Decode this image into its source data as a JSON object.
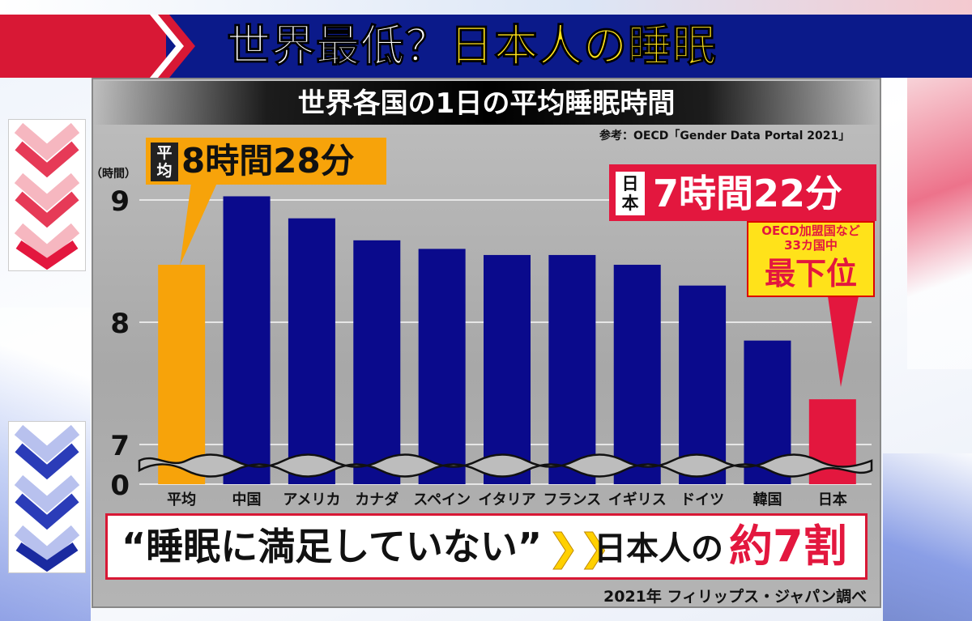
{
  "header": {
    "title_part1": "世界最低？",
    "title_part2": "日本人の睡眠"
  },
  "subtitle": "世界各国の1日の平均睡眠時間",
  "source": "参考：OECD「Gender Data Portal 2021」",
  "average_callout": {
    "tag": "平均",
    "value": "8時間28分"
  },
  "japan_callout": {
    "tag": "日本",
    "value": "7時間22分"
  },
  "rank_callout": {
    "line1": "OECD加盟国など",
    "line2": "33カ国中",
    "line3": "最下位"
  },
  "bottom": {
    "quote": "“睡眠に満足していない”",
    "arrow": "❯❯",
    "subject": "日本人の",
    "value": "約7割"
  },
  "credit": "2021年 フィリップス・ジャパン調べ",
  "colors": {
    "average": "#f7a30a",
    "country": "#0a0a8c",
    "japan": "#e3173e",
    "accent_red": "#d81835",
    "accent_yellow": "#ffe21a"
  },
  "chart_data": {
    "type": "bar",
    "ylabel": "（時間）",
    "y_ticks": [
      "9",
      "8",
      "7",
      "0"
    ],
    "ylim": [
      7,
      9.3
    ],
    "axis_break": true,
    "grid": true,
    "categories": [
      "平均",
      "中国",
      "アメリカ",
      "カナダ",
      "スペイン",
      "イタリア",
      "フランス",
      "イギリス",
      "ドイツ",
      "韓国",
      "日本"
    ],
    "values": [
      8.47,
      9.03,
      8.85,
      8.67,
      8.6,
      8.55,
      8.55,
      8.47,
      8.3,
      7.85,
      7.37
    ]
  }
}
